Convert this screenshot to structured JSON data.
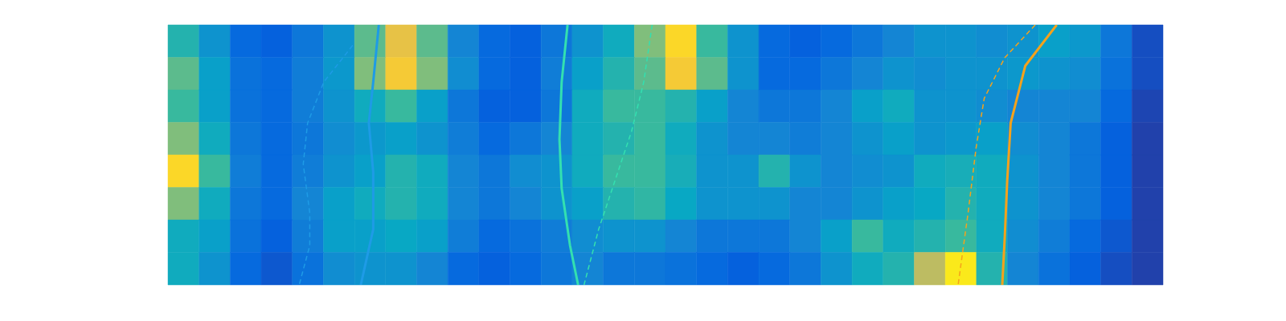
{
  "chart_data": {
    "type": "heatmap",
    "tick_labels": false,
    "xlim": [
      0,
      32
    ],
    "ylim": [
      0,
      8
    ],
    "color_range": [
      0,
      1
    ],
    "cells": [
      [
        0.45,
        0.3,
        0.15,
        0.12,
        0.2,
        0.3,
        0.55,
        0.8,
        0.55,
        0.25,
        0.15,
        0.12,
        0.2,
        0.3,
        0.4,
        0.6,
        0.9,
        0.5,
        0.3,
        0.15,
        0.12,
        0.15,
        0.2,
        0.25,
        0.3,
        0.3,
        0.28,
        0.3,
        0.35,
        0.32,
        0.2,
        0.08
      ],
      [
        0.55,
        0.35,
        0.18,
        0.15,
        0.22,
        0.32,
        0.6,
        0.85,
        0.6,
        0.28,
        0.15,
        0.12,
        0.22,
        0.35,
        0.45,
        0.55,
        0.85,
        0.55,
        0.3,
        0.15,
        0.15,
        0.2,
        0.25,
        0.3,
        0.28,
        0.3,
        0.3,
        0.32,
        0.3,
        0.28,
        0.18,
        0.08
      ],
      [
        0.5,
        0.35,
        0.18,
        0.15,
        0.22,
        0.3,
        0.4,
        0.5,
        0.35,
        0.2,
        0.12,
        0.12,
        0.2,
        0.4,
        0.5,
        0.5,
        0.45,
        0.35,
        0.25,
        0.2,
        0.2,
        0.25,
        0.35,
        0.4,
        0.3,
        0.3,
        0.28,
        0.25,
        0.25,
        0.25,
        0.15,
        0.06
      ],
      [
        0.6,
        0.4,
        0.2,
        0.15,
        0.2,
        0.28,
        0.32,
        0.35,
        0.3,
        0.22,
        0.15,
        0.2,
        0.25,
        0.4,
        0.45,
        0.5,
        0.4,
        0.3,
        0.25,
        0.25,
        0.22,
        0.25,
        0.3,
        0.35,
        0.3,
        0.32,
        0.35,
        0.28,
        0.25,
        0.2,
        0.12,
        0.05
      ],
      [
        0.9,
        0.5,
        0.22,
        0.15,
        0.22,
        0.3,
        0.35,
        0.45,
        0.4,
        0.25,
        0.2,
        0.28,
        0.3,
        0.4,
        0.5,
        0.5,
        0.42,
        0.3,
        0.3,
        0.45,
        0.3,
        0.25,
        0.28,
        0.3,
        0.4,
        0.42,
        0.4,
        0.3,
        0.25,
        0.2,
        0.12,
        0.05
      ],
      [
        0.6,
        0.4,
        0.2,
        0.15,
        0.25,
        0.35,
        0.4,
        0.45,
        0.4,
        0.25,
        0.2,
        0.25,
        0.3,
        0.35,
        0.45,
        0.48,
        0.38,
        0.3,
        0.3,
        0.3,
        0.25,
        0.25,
        0.3,
        0.35,
        0.38,
        0.45,
        0.4,
        0.3,
        0.25,
        0.2,
        0.12,
        0.05
      ],
      [
        0.4,
        0.35,
        0.18,
        0.12,
        0.22,
        0.35,
        0.35,
        0.38,
        0.35,
        0.22,
        0.15,
        0.18,
        0.22,
        0.28,
        0.3,
        0.3,
        0.25,
        0.2,
        0.2,
        0.2,
        0.25,
        0.35,
        0.5,
        0.4,
        0.45,
        0.5,
        0.4,
        0.28,
        0.22,
        0.15,
        0.1,
        0.05
      ],
      [
        0.4,
        0.3,
        0.15,
        0.1,
        0.18,
        0.28,
        0.3,
        0.3,
        0.25,
        0.15,
        0.12,
        0.15,
        0.2,
        0.25,
        0.2,
        0.2,
        0.18,
        0.15,
        0.12,
        0.15,
        0.2,
        0.3,
        0.4,
        0.45,
        0.7,
        0.95,
        0.45,
        0.25,
        0.18,
        0.12,
        0.08,
        0.05
      ]
    ],
    "series": [
      {
        "color": "#1e9be6",
        "line_style": "dashed",
        "x": [
          5.94,
          5.01,
          4.49,
          4.35,
          4.56,
          4.56,
          4.22
        ],
        "y": [
          7.37,
          6.24,
          4.98,
          3.72,
          2.21,
          1.21,
          0
        ]
      },
      {
        "color": "#1e9be6",
        "line_style": "solid",
        "x": [
          6.78,
          6.6,
          6.46,
          6.6,
          6.6,
          6.2
        ],
        "y": [
          8,
          6.24,
          4.98,
          3.47,
          1.71,
          0
        ]
      },
      {
        "color": "#33e0b0",
        "line_style": "solid",
        "x": [
          12.85,
          12.66,
          12.59,
          12.66,
          12.93,
          13.19
        ],
        "y": [
          8,
          6.24,
          4.48,
          2.97,
          1.21,
          0
        ]
      },
      {
        "color": "#33e0b0",
        "line_style": "dashed",
        "x": [
          15.57,
          15.3,
          14.91,
          14.38,
          13.85,
          13.38
        ],
        "y": [
          8,
          6.24,
          4.73,
          3.22,
          1.71,
          0
        ]
      },
      {
        "color": "#f5a21b",
        "line_style": "solid",
        "x": [
          28.58,
          27.57,
          27.1,
          26.99,
          26.91,
          26.83
        ],
        "y": [
          8,
          6.74,
          4.98,
          3.22,
          1.46,
          0
        ]
      },
      {
        "color": "#f5a21b",
        "line_style": "dashed",
        "x": [
          27.89,
          26.91,
          26.25,
          25.99,
          25.73,
          25.41
        ],
        "y": [
          8,
          6.99,
          5.74,
          4.23,
          2.21,
          0
        ]
      }
    ]
  }
}
